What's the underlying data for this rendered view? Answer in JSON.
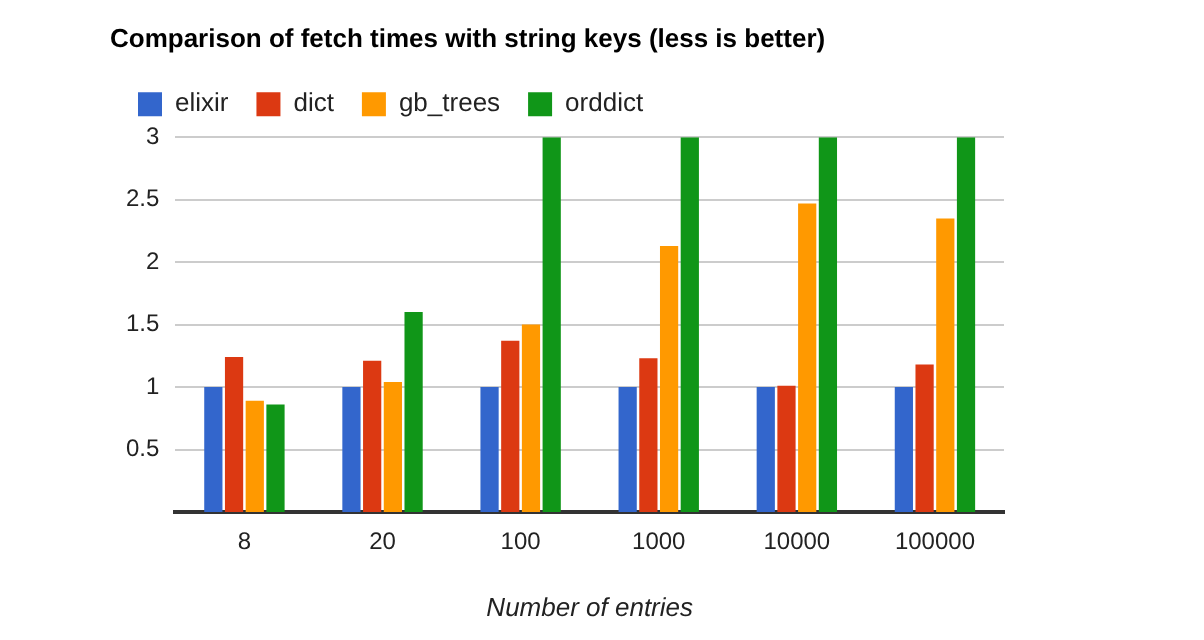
{
  "chart_data": {
    "type": "bar",
    "title": "Comparison of fetch times with string keys (less is better)",
    "xlabel": "Number of entries",
    "categories": [
      "8",
      "20",
      "100",
      "1000",
      "10000",
      "100000"
    ],
    "series": [
      {
        "name": "elixir",
        "color": "#3366cc",
        "values": [
          1,
          1,
          1,
          1,
          1,
          1
        ]
      },
      {
        "name": "dict",
        "color": "#dc3912",
        "values": [
          1.24,
          1.21,
          1.37,
          1.23,
          1.01,
          1.18
        ]
      },
      {
        "name": "gb_trees",
        "color": "#ff9900",
        "values": [
          0.89,
          1.04,
          1.5,
          2.13,
          2.47,
          2.35
        ]
      },
      {
        "name": "orddict",
        "color": "#109618",
        "values": [
          0.86,
          1.6,
          3,
          3,
          3,
          3
        ]
      }
    ],
    "ylim": [
      0,
      3
    ],
    "yticks": [
      0.5,
      1,
      1.5,
      2,
      2.5,
      3
    ],
    "grid": "y",
    "legend": "top left"
  }
}
